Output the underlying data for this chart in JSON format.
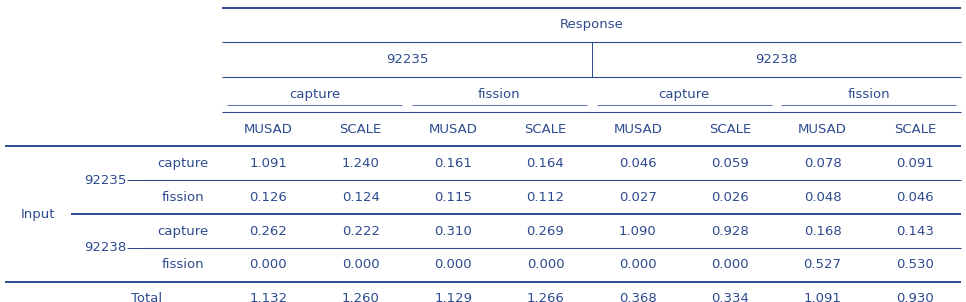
{
  "title": "Response",
  "isotope_headers": [
    "92235",
    "92238"
  ],
  "reaction_headers": [
    "capture",
    "fission",
    "capture",
    "fission"
  ],
  "leaf_cols": [
    "MUSAD",
    "SCALE",
    "MUSAD",
    "SCALE",
    "MUSAD",
    "SCALE",
    "MUSAD",
    "SCALE"
  ],
  "input_label": "Input",
  "row_groups": [
    {
      "group_label": "92235",
      "rows": [
        {
          "label": "capture",
          "values": [
            "1.091",
            "1.240",
            "0.161",
            "0.164",
            "0.046",
            "0.059",
            "0.078",
            "0.091"
          ]
        },
        {
          "label": "fission",
          "values": [
            "0.126",
            "0.124",
            "0.115",
            "0.112",
            "0.027",
            "0.026",
            "0.048",
            "0.046"
          ]
        }
      ]
    },
    {
      "group_label": "92238",
      "rows": [
        {
          "label": "capture",
          "values": [
            "0.262",
            "0.222",
            "0.310",
            "0.269",
            "1.090",
            "0.928",
            "0.168",
            "0.143"
          ]
        },
        {
          "label": "fission",
          "values": [
            "0.000",
            "0.000",
            "0.000",
            "0.000",
            "0.000",
            "0.000",
            "0.527",
            "0.530"
          ]
        }
      ]
    }
  ],
  "total_row": {
    "label": "Total",
    "values": [
      "1.132",
      "1.260",
      "1.129",
      "1.266",
      "0.368",
      "0.334",
      "1.091",
      "0.930"
    ]
  },
  "text_color": "#2E4B8F",
  "line_color": "#2E4B8F",
  "bg_color": "#FFFFFF",
  "font_size": 9.5,
  "header_font_size": 9.5
}
